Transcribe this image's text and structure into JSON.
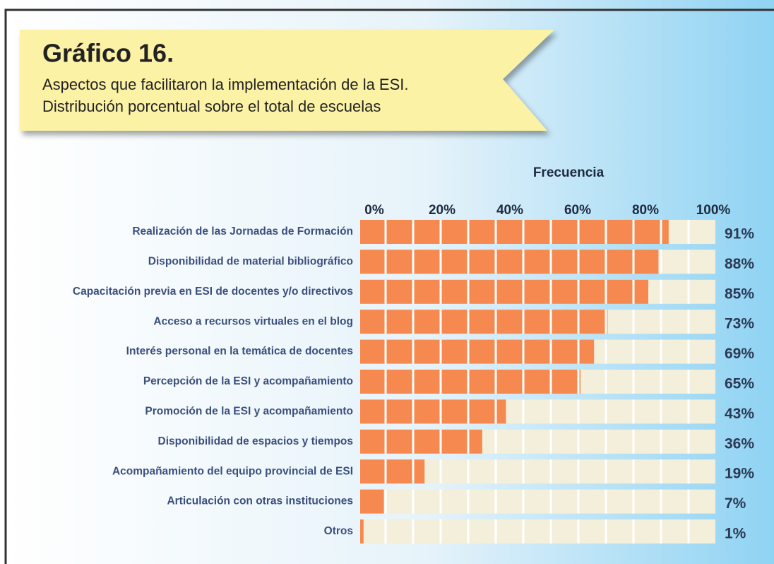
{
  "chart_data": {
    "type": "barh",
    "title": "Gráfico 16.",
    "subtitle": [
      "Aspectos que facilitaron la implementación de la ESI.",
      "Distribución porcentual sobre el total de escuelas"
    ],
    "xlabel": "Frecuencia",
    "categories": [
      "Realización de las Jornadas de Formación",
      "Disponibilidad de material bibliográfico",
      "Capacitación previa en ESI de docentes y/o directivos",
      "Acceso a recursos virtuales en el blog",
      "Interés personal en la temática de docentes",
      "Percepción de la ESI y acompañamiento",
      "Promoción de la ESI y acompañamiento",
      "Disponibilidad de espacios y tiempos",
      "Acompañamiento del equipo provincial de ESI",
      "Articulación con otras instituciones",
      "Otros"
    ],
    "values": [
      91,
      88,
      85,
      73,
      69,
      65,
      43,
      36,
      19,
      7,
      1
    ],
    "value_labels": [
      "91%",
      "88%",
      "85%",
      "73%",
      "69%",
      "65%",
      "43%",
      "36%",
      "19%",
      "7%",
      "1%"
    ],
    "color": "#f5894f",
    "xlim": [
      0,
      100
    ],
    "xticks": [
      {
        "value": 0,
        "label": "0%"
      },
      {
        "value": 20,
        "label": "20%"
      },
      {
        "value": 40,
        "label": "40%"
      },
      {
        "value": 60,
        "label": "60%"
      },
      {
        "value": 80,
        "label": "80%"
      },
      {
        "value": 100,
        "label": "100%"
      }
    ]
  }
}
